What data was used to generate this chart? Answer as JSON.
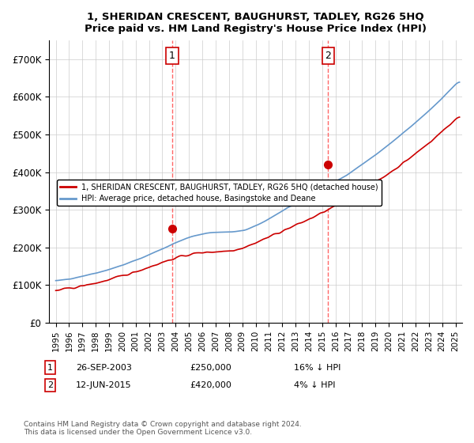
{
  "title": "1, SHERIDAN CRESCENT, BAUGHURST, TADLEY, RG26 5HQ",
  "subtitle": "Price paid vs. HM Land Registry's House Price Index (HPI)",
  "ylabel_ticks": [
    "£0",
    "£100K",
    "£200K",
    "£300K",
    "£400K",
    "£500K",
    "£600K",
    "£700K"
  ],
  "ytick_values": [
    0,
    100000,
    200000,
    300000,
    400000,
    500000,
    600000,
    700000
  ],
  "ylim": [
    0,
    750000
  ],
  "xlim_start": 1995.0,
  "xlim_end": 2025.5,
  "sale1_x": 2003.74,
  "sale1_y": 250000,
  "sale1_label": "1",
  "sale2_x": 2015.45,
  "sale2_y": 420000,
  "sale2_label": "2",
  "legend_line1": "1, SHERIDAN CRESCENT, BAUGHURST, TADLEY, RG26 5HQ (detached house)",
  "legend_line2": "HPI: Average price, detached house, Basingstoke and Deane",
  "annotation1": "1    26-SEP-2003         £250,000         16% ↓ HPI",
  "annotation2": "2    12-JUN-2015         £420,000           4% ↓ HPI",
  "footer": "Contains HM Land Registry data © Crown copyright and database right 2024.\nThis data is licensed under the Open Government Licence v3.0.",
  "hpi_color": "#6699cc",
  "price_color": "#cc0000",
  "sale_marker_color": "#cc0000",
  "vline_color": "#ff6666",
  "bg_color": "#ffffff",
  "grid_color": "#cccccc"
}
